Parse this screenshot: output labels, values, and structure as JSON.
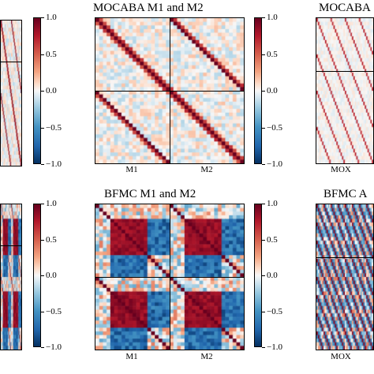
{
  "chart_data": [
    {
      "type": "heatmap",
      "title": "",
      "colorbar": {
        "ticks": [
          "1.0",
          "0.5",
          "0.0",
          "−0.5",
          "−1.0"
        ],
        "range": [
          -1.0,
          1.0
        ]
      },
      "x_tick_labels": [],
      "blocks": 2,
      "pattern": "weak"
    },
    {
      "type": "heatmap",
      "title": "MOCABA M1 and M2",
      "colorbar": {
        "ticks": [
          "1.0",
          "0.5",
          "0.0",
          "−0.5",
          "−1.0"
        ],
        "range": [
          -1.0,
          1.0
        ]
      },
      "x_tick_labels": [
        "M1",
        "M2"
      ],
      "blocks": 2,
      "pattern": "weak"
    },
    {
      "type": "heatmap",
      "title": "MOCABA",
      "x_tick_labels": [
        "MOX"
      ],
      "blocks": 2,
      "pattern": "sparse"
    },
    {
      "type": "heatmap",
      "title": "",
      "colorbar": {
        "ticks": [
          "1.0",
          "0.5",
          "0.0",
          "−0.5",
          "−1.0"
        ],
        "range": [
          -1.0,
          1.0
        ]
      },
      "x_tick_labels": [],
      "blocks": 2,
      "pattern": "strong"
    },
    {
      "type": "heatmap",
      "title": "BFMC M1 and M2",
      "colorbar": {
        "ticks": [
          "1.0",
          "0.5",
          "0.0",
          "−0.5",
          "−1.0"
        ],
        "range": [
          -1.0,
          1.0
        ]
      },
      "x_tick_labels": [
        "M1",
        "M2"
      ],
      "blocks": 2,
      "pattern": "strong"
    },
    {
      "type": "heatmap",
      "title": "BFMC A",
      "x_tick_labels": [
        "MOX"
      ],
      "blocks": 8,
      "pattern": "grid"
    }
  ]
}
